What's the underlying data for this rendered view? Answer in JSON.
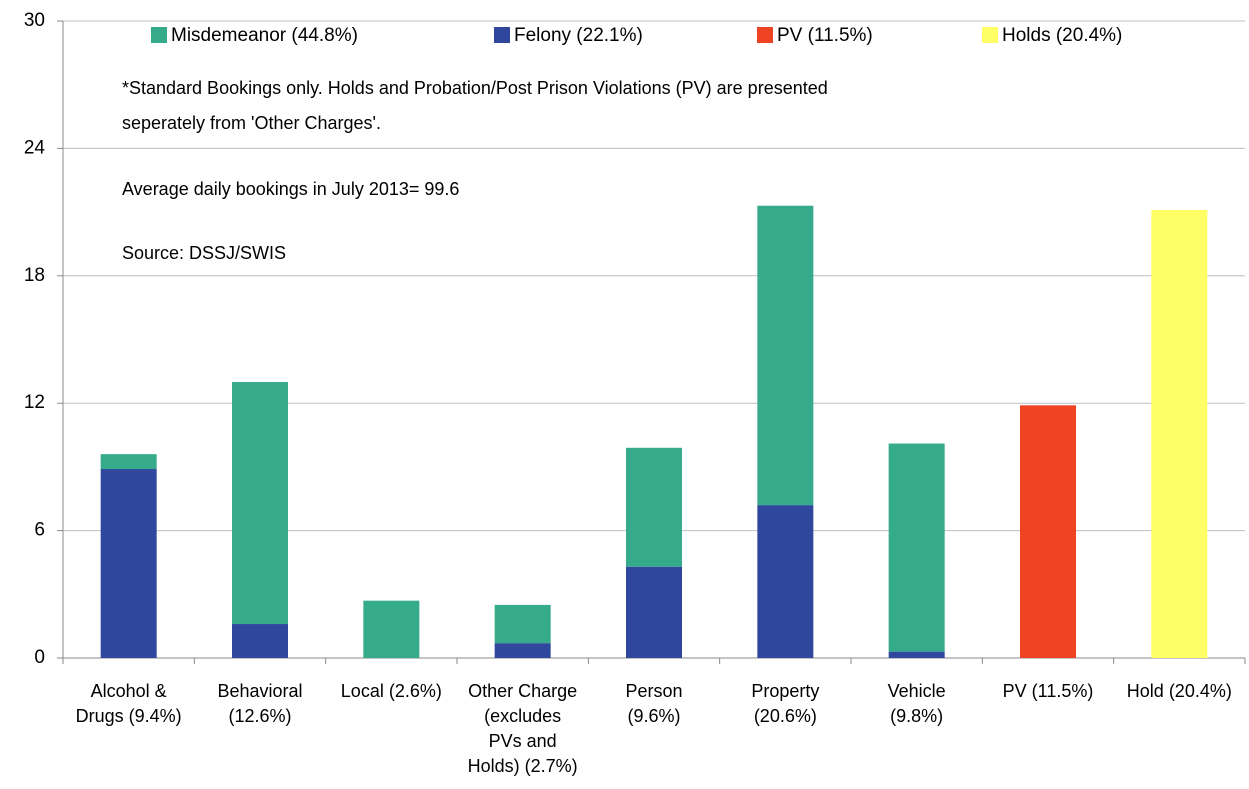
{
  "chart_data": {
    "type": "stacked_bar",
    "categories": [
      [
        "Alcohol &",
        "Drugs (9.4%)"
      ],
      [
        "Behavioral",
        "(12.6%)"
      ],
      [
        "Local (2.6%)"
      ],
      [
        "Other Charge",
        "(excludes",
        "PVs and",
        "Holds) (2.7%)"
      ],
      [
        "Person",
        "(9.6%)"
      ],
      [
        "Property",
        "(20.6%)"
      ],
      [
        "Vehicle",
        "(9.8%)"
      ],
      [
        "PV (11.5%)"
      ],
      [
        "Hold (20.4%)"
      ]
    ],
    "series": [
      {
        "name": "Misdemeanor (44.8%)",
        "color": "#36ab8c",
        "values": [
          0.7,
          11.4,
          2.7,
          1.8,
          5.6,
          14.1,
          9.8,
          null,
          null
        ]
      },
      {
        "name": "Felony (22.1%)",
        "color": "#30479e",
        "values": [
          8.9,
          1.6,
          null,
          0.7,
          4.3,
          7.2,
          0.3,
          null,
          null
        ]
      },
      {
        "name": "PV (11.5%)",
        "color": "#f04323",
        "values": [
          null,
          null,
          null,
          null,
          null,
          null,
          null,
          11.9,
          null
        ]
      },
      {
        "name": "Holds (20.4%)",
        "color": "#ffff66",
        "values": [
          null,
          null,
          null,
          null,
          null,
          null,
          null,
          null,
          21.1
        ]
      }
    ],
    "annotations": [
      [
        "*Standard Bookings only. Holds and Probation/Post Prison Violations (PV) are presented",
        "seperately from 'Other Charges'."
      ],
      [
        "Average daily bookings in July 2013= 99.6"
      ],
      [
        "Source: DSSJ/SWIS"
      ]
    ],
    "ylim": [
      0,
      30
    ],
    "yticks": [
      0,
      6,
      12,
      18,
      24,
      30
    ],
    "grid": true,
    "legend": "top"
  }
}
